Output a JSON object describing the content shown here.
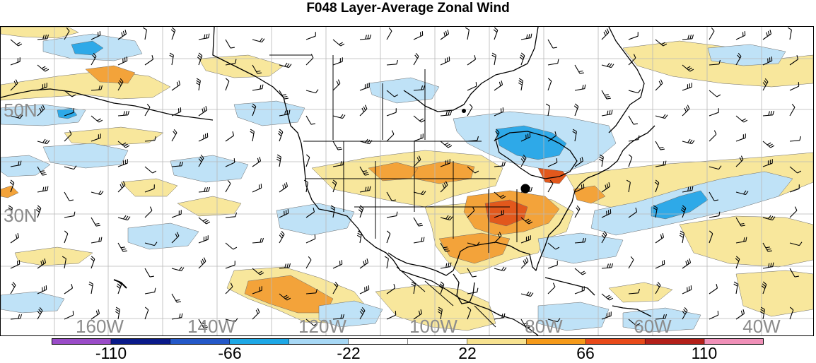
{
  "title": "F048 Layer-Average Zonal Wind",
  "latitude_labels": [
    "50N",
    "30N"
  ],
  "longitude_labels": [
    "160W",
    "140W",
    "120W",
    "100W",
    "80W",
    "60W",
    "40W"
  ],
  "colorbar": {
    "ticks": [
      "-110",
      "-66",
      "-22",
      "22",
      "66",
      "110"
    ],
    "colors": [
      "#9a4cc8",
      "#0a1a8a",
      "#2458c8",
      "#1ea8e6",
      "#a7d8f5",
      "#ffffff",
      "#ffffff",
      "#f7e290",
      "#f59a1a",
      "#e84a1a",
      "#b3201a",
      "#f090b8"
    ]
  },
  "palette": {
    "light_positive": "#f8e79c",
    "moderate_positive": "#f3a33a",
    "strong_positive": "#e2581c",
    "light_negative": "#bfe2f7",
    "moderate_negative": "#2ea9e8"
  }
}
